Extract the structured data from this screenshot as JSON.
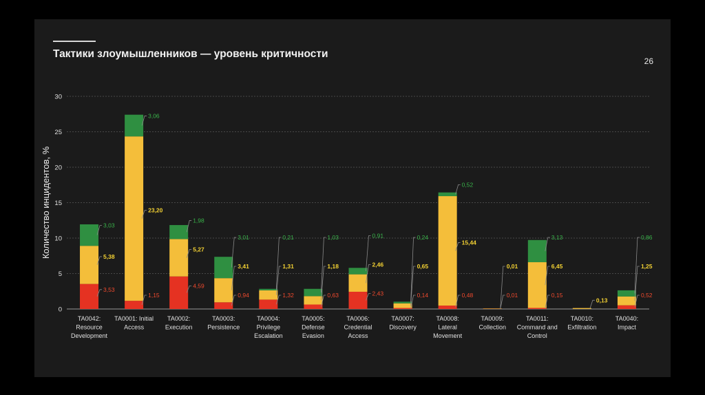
{
  "slide": {
    "title": "Тактики злоумышленников — уровень критичности",
    "page_number": "26"
  },
  "colors": {
    "low": "#f4be3a",
    "high": "#e53222",
    "medium": "#2f8f41",
    "label_red": "#f04a2e",
    "label_yellow": "#f4d233",
    "label_green": "#39b34a",
    "grid": "#5a5a5a",
    "text": "#e0e0e0"
  },
  "chart_data": {
    "type": "bar",
    "stacked": true,
    "ylabel": "Количество инцидентов, %",
    "ylim": [
      0,
      30
    ],
    "yticks": [
      0,
      5,
      10,
      15,
      20,
      25,
      30
    ],
    "grid": true,
    "categories": [
      [
        "TA0042:",
        "Resource",
        "Development"
      ],
      [
        "TA0001: Initial",
        "Access"
      ],
      [
        "TA0002:",
        "Execution"
      ],
      [
        "TA0003:",
        "Persistence"
      ],
      [
        "TA0004:",
        "Privilege",
        "Escalation"
      ],
      [
        "TA0005:",
        "Defense",
        "Evasion"
      ],
      [
        "TA0006:",
        "Credential",
        "Access"
      ],
      [
        "TA0007:",
        "Discovery"
      ],
      [
        "TA0008:",
        "Lateral",
        "Movement"
      ],
      [
        "TA0009:",
        "Collection"
      ],
      [
        "TA0011:",
        "Command and",
        "Control"
      ],
      [
        "TA0010:",
        "Exfiltration"
      ],
      [
        "TA0040:",
        "Impact"
      ]
    ],
    "series": [
      {
        "color": "#e53222",
        "values": [
          3.53,
          1.15,
          4.59,
          0.94,
          1.32,
          0.63,
          2.43,
          0.14,
          0.48,
          0.01,
          0.15,
          0,
          0.52
        ],
        "labels": [
          "3,53",
          "1,15",
          "4,59",
          "0,94",
          "1,32",
          "0,63",
          "2,43",
          "0,14",
          "0,48",
          "0,01",
          "0,15",
          "",
          "0,52"
        ]
      },
      {
        "color": "#f4be3a",
        "values": [
          5.38,
          23.2,
          5.27,
          3.41,
          1.31,
          1.18,
          2.46,
          0.65,
          15.44,
          0.01,
          6.45,
          0.13,
          1.25
        ],
        "labels": [
          "5,38",
          "23,20",
          "5,27",
          "3,41",
          "1,31",
          "1,18",
          "2,46",
          "0,65",
          "15,44",
          "0,01",
          "6,45",
          "0,13",
          "1,25"
        ]
      },
      {
        "color": "#2f8f41",
        "values": [
          3.03,
          3.06,
          1.98,
          3.01,
          0.21,
          1.03,
          0.91,
          0.24,
          0.52,
          0,
          3.13,
          0,
          0.86
        ],
        "labels": [
          "3,03",
          "3,06",
          "1,98",
          "3,01",
          "0,21",
          "1,03",
          "0,91",
          "0,24",
          "0,52",
          "",
          "3,13",
          "",
          "0,86"
        ]
      }
    ]
  }
}
